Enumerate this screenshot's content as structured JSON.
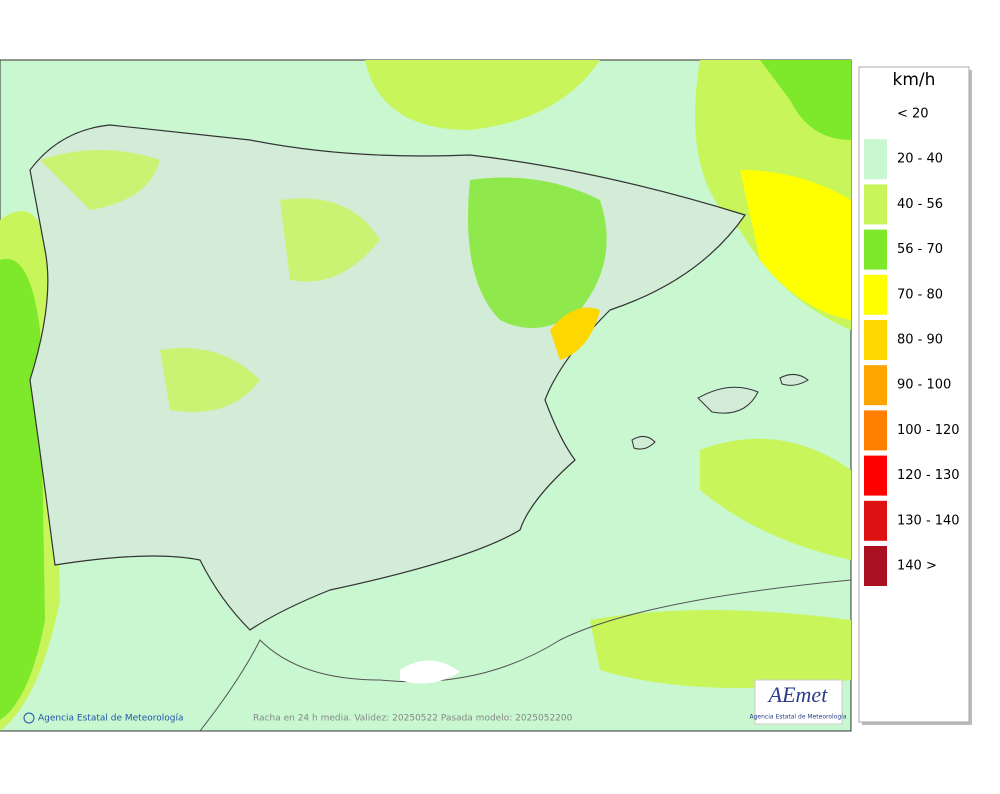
{
  "legend": {
    "title": "km/h",
    "items": [
      {
        "label": "< 20",
        "color": "#ffffff"
      },
      {
        "label": "20 - 40",
        "color": "#c8f7d0"
      },
      {
        "label": "40 - 56",
        "color": "#c8f55a"
      },
      {
        "label": "56 - 70",
        "color": "#7ee82a"
      },
      {
        "label": "70 - 80",
        "color": "#ffff00"
      },
      {
        "label": "80 - 90",
        "color": "#ffd700"
      },
      {
        "label": "90 - 100",
        "color": "#ffa500"
      },
      {
        "label": "100 - 120",
        "color": "#ff8000"
      },
      {
        "label": "120 - 130",
        "color": "#ff0000"
      },
      {
        "label": "130 - 140",
        "color": "#dd1111"
      },
      {
        "label": "140 >",
        "color": "#aa1020"
      }
    ]
  },
  "footer": {
    "credit": "Agencia Estatal de Meteorología",
    "caption": "Racha en 24 h media. Validez: 20250522 Pasada modelo: 2025052200"
  },
  "logo": {
    "mark": "AEmet",
    "name": "Agencia Estatal de Meteorología"
  }
}
